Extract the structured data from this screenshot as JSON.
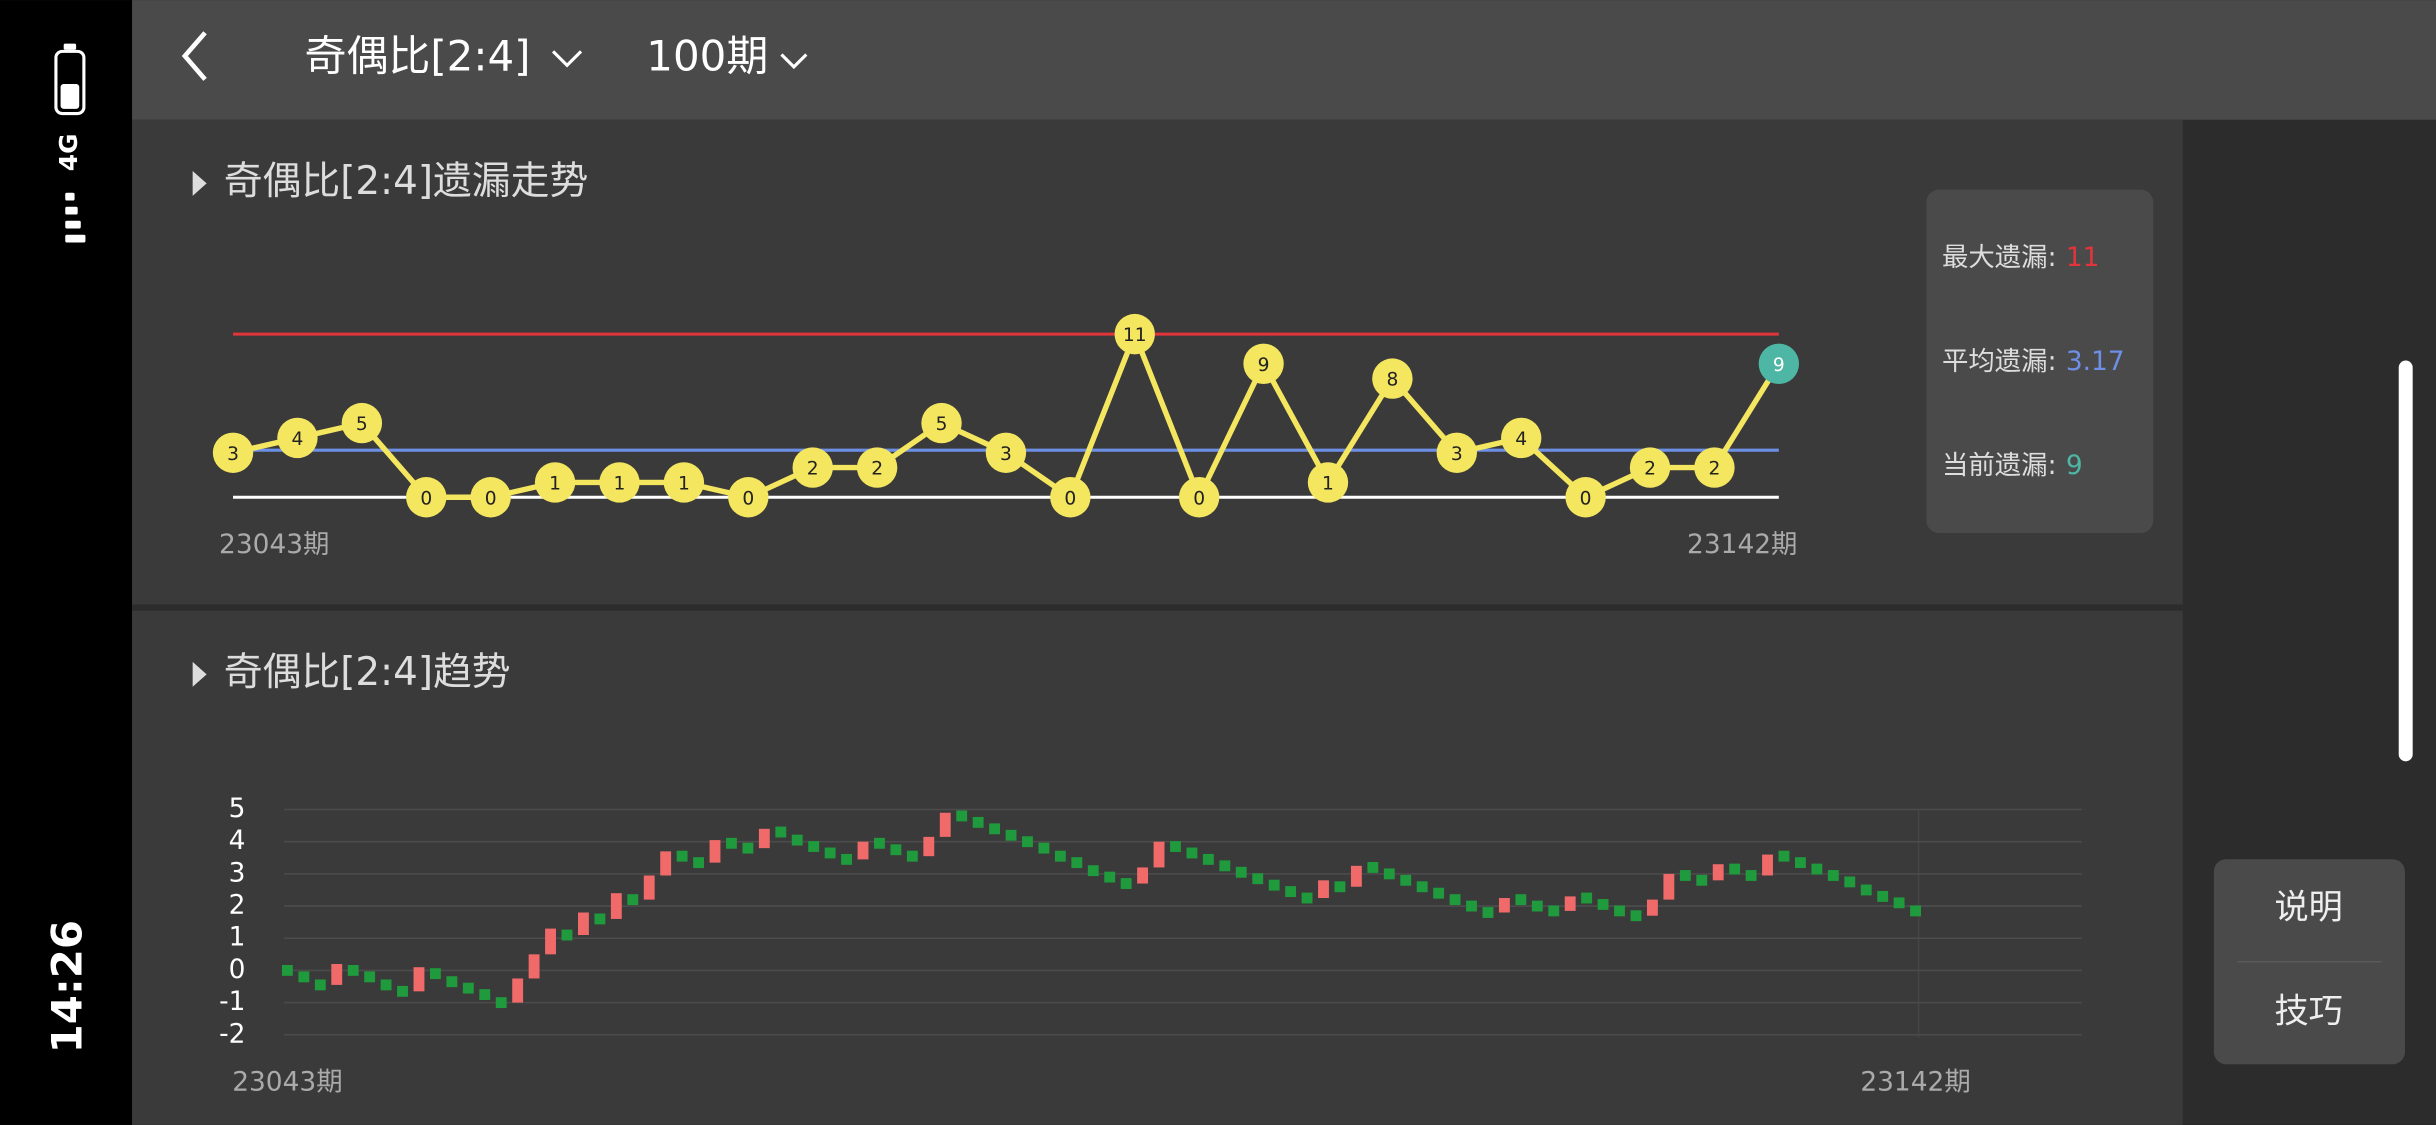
{
  "status_bar": {
    "network": "4G",
    "time": "14:26"
  },
  "header": {
    "title": "奇偶比[2:4]",
    "periods": "100期"
  },
  "miss_panel": {
    "title": "奇偶比[2:4]遗漏走势",
    "chart_data": {
      "type": "line",
      "values": [
        3,
        4,
        5,
        0,
        0,
        1,
        1,
        1,
        0,
        2,
        2,
        5,
        3,
        0,
        11,
        0,
        9,
        1,
        8,
        3,
        4,
        0,
        2,
        2,
        9
      ],
      "color": "#f4e65e",
      "current_color": "#4db6a4",
      "ylim": [
        0,
        11
      ],
      "start_label": "23043期",
      "end_label": "23142期"
    },
    "stats": [
      {
        "label": "最大遗漏:",
        "value": 11,
        "color": "#e0353b"
      },
      {
        "label": "平均遗漏:",
        "value": 3.17,
        "color": "#6e8fe6"
      },
      {
        "label": "当前遗漏:",
        "value": 9,
        "color": "#4db6a4"
      }
    ]
  },
  "trend_panel": {
    "title": "奇偶比[2:4]趋势",
    "chart_data": {
      "type": "trend",
      "values": [
        0,
        -0.2,
        -0.45,
        0.2,
        0,
        -0.2,
        -0.45,
        -0.65,
        0.1,
        -0.1,
        -0.35,
        -0.55,
        -0.75,
        -1.0,
        -0.25,
        0.5,
        1.3,
        1.1,
        1.8,
        1.6,
        2.4,
        2.2,
        2.95,
        3.7,
        3.55,
        3.35,
        4.05,
        3.95,
        3.8,
        4.4,
        4.3,
        4.05,
        3.85,
        3.65,
        3.45,
        4.0,
        3.95,
        3.75,
        3.55,
        4.15,
        4.9,
        4.8,
        4.6,
        4.4,
        4.2,
        4.0,
        3.8,
        3.55,
        3.35,
        3.1,
        2.9,
        2.7,
        3.2,
        4.0,
        3.85,
        3.65,
        3.45,
        3.25,
        3.05,
        2.85,
        2.65,
        2.45,
        2.25,
        2.8,
        2.6,
        3.25,
        3.2,
        3.0,
        2.8,
        2.6,
        2.4,
        2.2,
        2.0,
        1.8,
        2.25,
        2.2,
        2.0,
        1.85,
        2.3,
        2.25,
        2.05,
        1.85,
        1.7,
        2.2,
        3.0,
        2.95,
        2.8,
        3.3,
        3.15,
        2.95,
        3.6,
        3.55,
        3.35,
        3.15,
        2.95,
        2.75,
        2.5,
        2.3,
        2.1,
        1.85
      ],
      "up_color": "#f06a6a",
      "down_color": "#1f9a3c",
      "ylim": [
        -2,
        5
      ],
      "yticks": [
        5,
        4,
        3,
        2,
        1,
        0,
        -1,
        -2
      ],
      "grid": true,
      "start_label": "23043期",
      "end_label": "23142期"
    }
  },
  "buttons": [
    "说明",
    "技巧"
  ]
}
